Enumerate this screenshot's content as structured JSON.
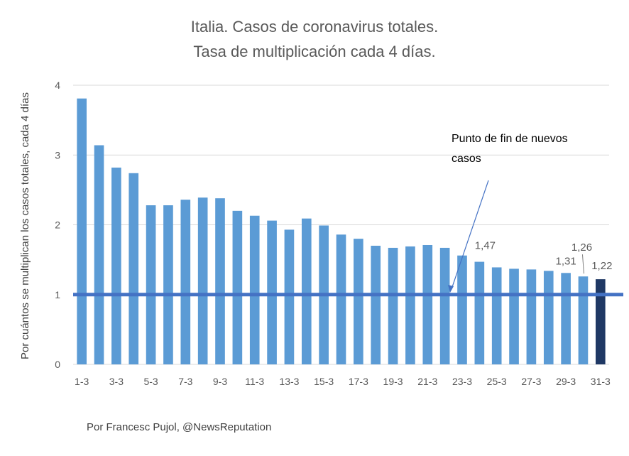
{
  "chart_data": {
    "type": "bar",
    "title": [
      "Italia. Casos de coronavirus totales.",
      "Tasa de multiplicación cada 4 días."
    ],
    "ylabel": "Por cuántos se multiplican los casos totales, cada 4 días",
    "ylim": [
      0,
      4
    ],
    "yticks": [
      "0",
      "1",
      "2",
      "3",
      "4"
    ],
    "grid": true,
    "categories": [
      "1-3",
      "2-3",
      "3-3",
      "4-3",
      "5-3",
      "6-3",
      "7-3",
      "8-3",
      "9-3",
      "10-3",
      "11-3",
      "12-3",
      "13-3",
      "14-3",
      "15-3",
      "16-3",
      "17-3",
      "18-3",
      "19-3",
      "20-3",
      "21-3",
      "22-3",
      "23-3",
      "24-3",
      "25-3",
      "26-3",
      "27-3",
      "28-3",
      "29-3",
      "30-3",
      "31-3"
    ],
    "xtick_labels": [
      "1-3",
      "",
      "3-3",
      "",
      "5-3",
      "",
      "7-3",
      "",
      "9-3",
      "",
      "11-3",
      "",
      "13-3",
      "",
      "15-3",
      "",
      "17-3",
      "",
      "19-3",
      "",
      "21-3",
      "",
      "23-3",
      "",
      "25-3",
      "",
      "27-3",
      "",
      "29-3",
      "",
      "31-3"
    ],
    "values": [
      3.81,
      3.14,
      2.82,
      2.74,
      2.28,
      2.28,
      2.36,
      2.39,
      2.38,
      2.2,
      2.13,
      2.06,
      1.93,
      2.09,
      1.99,
      1.86,
      1.8,
      1.7,
      1.67,
      1.69,
      1.71,
      1.67,
      1.56,
      1.47,
      1.39,
      1.37,
      1.36,
      1.34,
      1.31,
      1.26,
      1.22
    ],
    "data_labels": [
      {
        "index": 23,
        "text": "1,47"
      },
      {
        "index": 28,
        "text": "1,31"
      },
      {
        "index": 29,
        "text": "1,26"
      },
      {
        "index": 30,
        "text": "1,22"
      }
    ],
    "bar_color": "#5b9bd5",
    "highlight_index": 30,
    "highlight_color": "#1f3864",
    "reference_line": {
      "value": 1,
      "color": "#4472c4"
    },
    "annotation": {
      "lines": [
        "Punto de fin de nuevos",
        "casos"
      ]
    }
  },
  "credit": "Por Francesc Pujol, @NewsReputation"
}
